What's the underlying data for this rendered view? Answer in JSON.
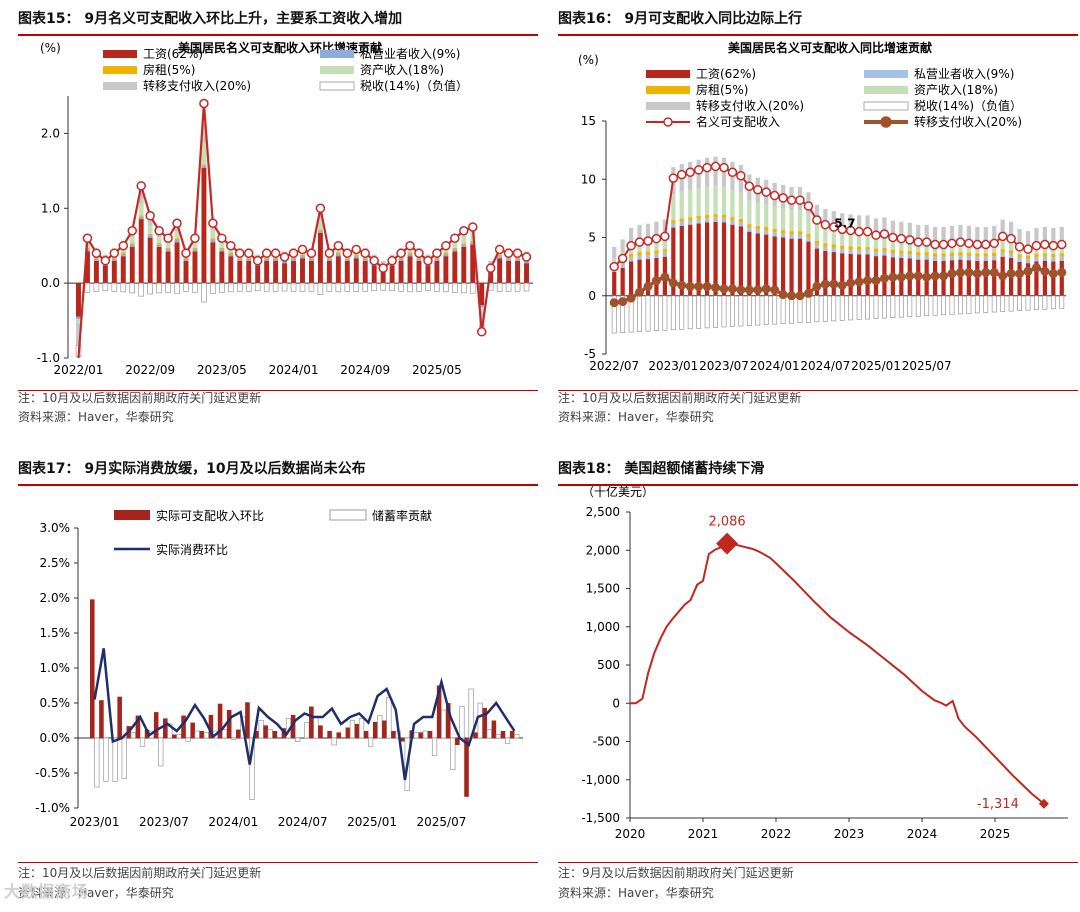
{
  "panels": {
    "p15": {
      "title": "图表15：  9月名义可支配收入环比上升，主要系工资收入增加",
      "note": "注：10月及以后数据因前期政府关门延迟更新",
      "source": "资料来源：Haver，华泰研究"
    },
    "p16": {
      "title": "图表16：  9月可支配收入同比边际上行",
      "note": "注：10月及以后数据因前期政府关门延迟更新",
      "source": "资料来源：Haver，华泰研究"
    },
    "p17": {
      "title": "图表17：  9月实际消费放缓，10月及以后数据尚未公布",
      "note": "注：10月及以后数据因前期政府关门延迟更新",
      "source": "资料来源：Haver，华泰研究"
    },
    "p18": {
      "title": "图表18：  美国超额储蓄持续下滑",
      "note": "注：9月及以后数据因前期政府关门延迟更新",
      "source": "资料来源：Haver，华泰研究"
    }
  },
  "watermark": "大数据商场",
  "chart_data": [
    {
      "id": "c15",
      "type": "bar",
      "title": "美国居民名义可支配收入环比增速贡献",
      "ylabel": "(%)",
      "ylim": [
        -1.0,
        2.5
      ],
      "yticks": [
        -1.0,
        0.0,
        1.0,
        2.0
      ],
      "ytick_labels": [
        "-1.0",
        "0.0",
        "1.0",
        "2.0"
      ],
      "xtick_labels": [
        "2022/01",
        "2022/09",
        "2023/05",
        "2024/01",
        "2024/09",
        "2025/05"
      ],
      "colors": {
        "wage": "#b8271c",
        "proprietor": "#8faadc",
        "rent": "#f0b400",
        "asset": "#c5e0b4",
        "transfer": "#c8c8c8",
        "tax": "#ffffff",
        "total": "#c62828"
      },
      "legend": [
        "工资(62%)",
        "私营业者收入(9%)",
        "房租(5%)",
        "资产收入(18%)",
        "转移支付收入(20%)",
        "税收(14%)（负值）"
      ],
      "total": [
        -1.0,
        0.6,
        0.4,
        0.3,
        0.4,
        0.5,
        0.7,
        1.3,
        0.9,
        0.7,
        0.6,
        0.8,
        0.4,
        0.6,
        2.4,
        0.8,
        0.6,
        0.5,
        0.4,
        0.4,
        0.3,
        0.4,
        0.4,
        0.35,
        0.4,
        0.45,
        0.4,
        1.0,
        0.4,
        0.5,
        0.4,
        0.45,
        0.4,
        0.3,
        0.2,
        0.3,
        0.4,
        0.5,
        0.4,
        0.3,
        0.4,
        0.5,
        0.6,
        0.7,
        0.75,
        -0.65,
        0.2,
        0.45,
        0.4,
        0.4,
        0.35
      ]
    },
    {
      "id": "c16",
      "type": "bar",
      "title": "美国居民名义可支配收入同比增速贡献",
      "ylabel": "(%)",
      "ylim": [
        -5,
        15
      ],
      "yticks": [
        -5,
        0,
        5,
        10,
        15
      ],
      "ytick_labels": [
        "-5",
        "0",
        "5",
        "10",
        "15"
      ],
      "xtick_labels": [
        "2022/07",
        "2023/01",
        "2023/07",
        "2024/01",
        "2024/07",
        "2025/01",
        "2025/07"
      ],
      "legend": [
        "工资(62%)",
        "私营业者收入(9%)",
        "房租(5%)",
        "资产收入(18%)",
        "转移支付收入(20%)",
        "税收(14%)（负值）",
        "名义可支配收入",
        "转移支付收入(20%)"
      ],
      "annotation": "5.7",
      "nominal_disposable_income": [
        2.5,
        3.2,
        4.3,
        4.6,
        4.7,
        4.9,
        5.1,
        10.1,
        10.4,
        10.6,
        10.8,
        11.0,
        11.1,
        11.0,
        10.6,
        10.3,
        9.4,
        9.1,
        8.9,
        8.6,
        8.4,
        8.2,
        8.2,
        7.7,
        6.5,
        6.1,
        5.9,
        5.7,
        5.6,
        5.5,
        5.5,
        5.2,
        5.3,
        5.0,
        4.9,
        4.8,
        4.6,
        4.6,
        4.4,
        4.4,
        4.5,
        4.6,
        4.5,
        4.4,
        4.4,
        4.5,
        5.1,
        4.9,
        4.2,
        4.0,
        4.3,
        4.4,
        4.3,
        4.4
      ],
      "transfer_payments": [
        -0.6,
        -0.5,
        -0.2,
        0.3,
        0.8,
        1.3,
        1.6,
        1.1,
        0.9,
        0.8,
        0.8,
        0.8,
        0.7,
        0.6,
        0.6,
        0.5,
        0.5,
        0.5,
        0.6,
        0.5,
        0.1,
        0.0,
        0.0,
        0.2,
        0.8,
        1.0,
        1.0,
        0.9,
        1.1,
        1.2,
        1.3,
        1.3,
        1.5,
        1.6,
        1.6,
        1.7,
        1.7,
        1.6,
        1.7,
        1.7,
        1.9,
        2.0,
        2.0,
        1.9,
        2.0,
        2.0,
        1.7,
        1.9,
        1.9,
        2.1,
        2.4,
        2.1,
        1.9,
        2.0
      ]
    },
    {
      "id": "c17",
      "type": "bar",
      "title": "",
      "ylim": [
        -1.0,
        3.0
      ],
      "yticks": [
        -1.0,
        -0.5,
        0.0,
        0.5,
        1.0,
        1.5,
        2.0,
        2.5,
        3.0
      ],
      "ytick_labels": [
        "-1.0%",
        "-0.5%",
        "0.0%",
        "0.5%",
        "1.0%",
        "1.5%",
        "2.0%",
        "2.5%",
        "3.0%"
      ],
      "xtick_labels": [
        "2023/01",
        "2023/07",
        "2024/01",
        "2024/07",
        "2025/01",
        "2025/07"
      ],
      "legend": [
        "实际可支配收入环比",
        "储蓄率贡献",
        "实际消费环比"
      ],
      "series": [
        {
          "name": "实际可支配收入环比",
          "values": [
            1.98,
            0.54,
            0.0,
            0.59,
            0.17,
            0.32,
            0.12,
            0.37,
            0.28,
            0.05,
            0.32,
            0.22,
            0.1,
            0.33,
            0.49,
            0.4,
            0.12,
            0.51,
            0.1,
            0.18,
            0.1,
            0.14,
            0.33,
            0.0,
            0.45,
            0.18,
            0.1,
            0.08,
            0.15,
            0.2,
            0.1,
            0.23,
            0.25,
            0.1,
            -0.05,
            0.11,
            0.08,
            0.1,
            0.75,
            0.5,
            -0.1,
            -0.84,
            0.08,
            0.43,
            0.25,
            0.1,
            0.1
          ]
        },
        {
          "name": "储蓄率贡献",
          "values": [
            -0.7,
            -0.62,
            -0.62,
            -0.58,
            0.08,
            -0.12,
            0.1,
            -0.4,
            0.2,
            0.05,
            -0.05,
            0.1,
            0.08,
            0.1,
            0.12,
            -0.02,
            0.3,
            -0.88,
            0.25,
            0.12,
            0.0,
            0.28,
            -0.05,
            0.22,
            0.3,
            0.0,
            -0.1,
            0.0,
            0.25,
            0.28,
            -0.12,
            0.32,
            0.58,
            0.1,
            -0.75,
            0.08,
            0.1,
            -0.25,
            0.4,
            -0.45,
            0.45,
            0.7,
            0.5,
            0.12,
            0.05,
            -0.08,
            0.05
          ]
        },
        {
          "name": "实际消费环比",
          "values": [
            0.55,
            1.28,
            -0.05,
            0.0,
            0.13,
            0.3,
            0.04,
            0.13,
            0.2,
            0.1,
            0.25,
            0.47,
            0.28,
            0.02,
            0.13,
            0.3,
            0.37,
            -0.38,
            0.43,
            0.3,
            0.2,
            0.05,
            0.25,
            0.35,
            0.3,
            0.3,
            0.42,
            0.2,
            0.3,
            0.35,
            0.22,
            0.6,
            0.7,
            0.4,
            -0.6,
            0.2,
            0.3,
            0.3,
            0.8,
            0.3,
            0.0,
            -0.1,
            0.3,
            0.35,
            0.5,
            0.3,
            0.1
          ]
        }
      ]
    },
    {
      "id": "c18",
      "type": "line",
      "title": "",
      "ylabel": "（十亿美元）",
      "ylim": [
        -1500,
        2500
      ],
      "yticks": [
        -1500,
        -1000,
        -500,
        0,
        500,
        1000,
        1500,
        2000,
        2500
      ],
      "ytick_labels": [
        "-1,500",
        "-1,000",
        "-500",
        "0",
        "500",
        "1,000",
        "1,500",
        "2,000",
        "2,500"
      ],
      "xlim": [
        2020,
        2026
      ],
      "xtick_labels": [
        "2020",
        "2021",
        "2022",
        "2023",
        "2024",
        "2025"
      ],
      "annotations": {
        "peak": "2,086",
        "latest": "-1,314"
      },
      "x": [
        2020.0,
        2020.08,
        2020.17,
        2020.25,
        2020.33,
        2020.42,
        2020.5,
        2020.58,
        2020.67,
        2020.75,
        2020.83,
        2020.92,
        2021.0,
        2021.08,
        2021.17,
        2021.25,
        2021.33,
        2021.42,
        2021.5,
        2021.58,
        2021.67,
        2021.75,
        2021.83,
        2021.92,
        2022.0,
        2022.25,
        2022.5,
        2022.75,
        2023.0,
        2023.25,
        2023.5,
        2023.75,
        2024.0,
        2024.17,
        2024.25,
        2024.33,
        2024.42,
        2024.5,
        2024.58,
        2024.75,
        2025.0,
        2025.25,
        2025.5,
        2025.67
      ],
      "values": [
        0,
        0,
        60,
        400,
        650,
        850,
        1000,
        1100,
        1200,
        1290,
        1350,
        1550,
        1600,
        1950,
        2010,
        2040,
        2086,
        2080,
        2060,
        2040,
        2020,
        1990,
        1950,
        1900,
        1830,
        1600,
        1350,
        1120,
        930,
        760,
        570,
        380,
        160,
        40,
        10,
        -30,
        30,
        -200,
        -300,
        -450,
        -700,
        -950,
        -1180,
        -1314
      ]
    }
  ]
}
